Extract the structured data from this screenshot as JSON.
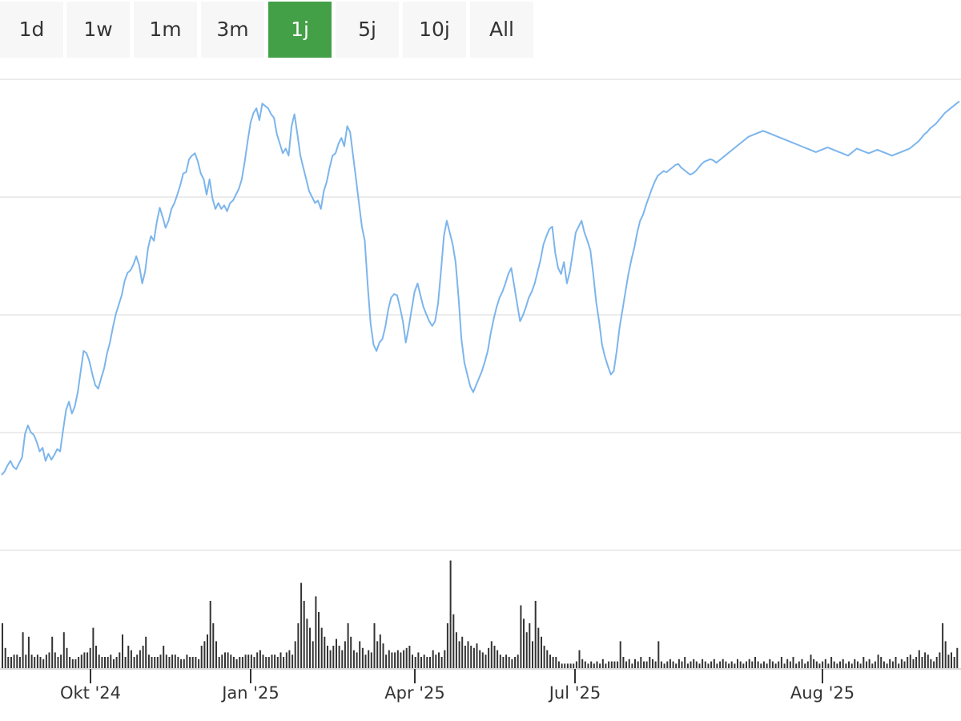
{
  "range_tabs": [
    {
      "label": "1d",
      "active": false
    },
    {
      "label": "1w",
      "active": false
    },
    {
      "label": "1m",
      "active": false
    },
    {
      "label": "3m",
      "active": false
    },
    {
      "label": "1j",
      "active": true
    },
    {
      "label": "5j",
      "active": false
    },
    {
      "label": "10j",
      "active": false
    },
    {
      "label": "All",
      "active": false
    }
  ],
  "colors": {
    "active_tab": "#43a047",
    "tab_background": "#f7f7f7",
    "price_line": "#7cb5ec",
    "volume_bars": "#333333",
    "grid": "#e6e6e6"
  },
  "chart_data": {
    "type": "line",
    "title": "",
    "xlabel": "",
    "ylabel": "",
    "x_tick_labels": [
      "Okt '24",
      "Jan '25",
      "Apr '25",
      "Jul '25",
      "Aug '25"
    ],
    "grid": true,
    "legend": "none",
    "y_tick_labels_visible": false,
    "x_start": "2024-08-28",
    "x_end": "2025-08-27",
    "series": [
      {
        "values": [
          0.0,
          0.03,
          0.08,
          0.12,
          0.07,
          0.05,
          0.1,
          0.15,
          0.35,
          0.42,
          0.36,
          0.34,
          0.28,
          0.2,
          0.23,
          0.12,
          0.18,
          0.13,
          0.17,
          0.22,
          0.2,
          0.38,
          0.55,
          0.62,
          0.52,
          0.58,
          0.7,
          0.88,
          1.05,
          1.03,
          0.96,
          0.85,
          0.76,
          0.73,
          0.82,
          0.9,
          1.03,
          1.12,
          1.25,
          1.36,
          1.44,
          1.52,
          1.64,
          1.71,
          1.73,
          1.78,
          1.85,
          1.77,
          1.62,
          1.72,
          1.92,
          2.02,
          1.98,
          2.14,
          2.26,
          2.18,
          2.09,
          2.15,
          2.25,
          2.3,
          2.37,
          2.45,
          2.55,
          2.56,
          2.67,
          2.7,
          2.72,
          2.65,
          2.55,
          2.5,
          2.37,
          2.5,
          2.34,
          2.25,
          2.3,
          2.25,
          2.28,
          2.23,
          2.3,
          2.32,
          2.37,
          2.42,
          2.5,
          2.65,
          2.82,
          2.98,
          3.06,
          3.1,
          3.0,
          3.14,
          3.12,
          3.1,
          3.05,
          3.02,
          2.88,
          2.8,
          2.72,
          2.76,
          2.7,
          2.95,
          3.05,
          2.88,
          2.7,
          2.6,
          2.5,
          2.4,
          2.35,
          2.3,
          2.32,
          2.25,
          2.4,
          2.48,
          2.6,
          2.7,
          2.72,
          2.8,
          2.85,
          2.78,
          2.95,
          2.9,
          2.7,
          2.5,
          2.3,
          2.1,
          1.98,
          1.6,
          1.28,
          1.1,
          1.05,
          1.12,
          1.15,
          1.25,
          1.4,
          1.5,
          1.53,
          1.52,
          1.42,
          1.3,
          1.12,
          1.25,
          1.4,
          1.55,
          1.62,
          1.52,
          1.42,
          1.36,
          1.3,
          1.26,
          1.3,
          1.45,
          1.72,
          2.02,
          2.15,
          2.05,
          1.95,
          1.8,
          1.5,
          1.15,
          0.95,
          0.85,
          0.75,
          0.7,
          0.76,
          0.82,
          0.88,
          0.96,
          1.05,
          1.2,
          1.32,
          1.42,
          1.5,
          1.55,
          1.62,
          1.7,
          1.75,
          1.6,
          1.45,
          1.3,
          1.35,
          1.42,
          1.5,
          1.55,
          1.62,
          1.72,
          1.82,
          1.95,
          2.02,
          2.08,
          2.1,
          1.88,
          1.75,
          1.7,
          1.8,
          1.62,
          1.72,
          1.88,
          2.05,
          2.1,
          2.15,
          2.05,
          1.98,
          1.9,
          1.7,
          1.46,
          1.3,
          1.1,
          1.0,
          0.92,
          0.85,
          0.88,
          1.05,
          1.25,
          1.4,
          1.55,
          1.7,
          1.82,
          1.92,
          2.05,
          2.15,
          2.2,
          2.28,
          2.35,
          2.42,
          2.48,
          2.53,
          2.55,
          2.57,
          2.56,
          2.58,
          2.6,
          2.62,
          2.63,
          2.6,
          2.58,
          2.56,
          2.54,
          2.55,
          2.57,
          2.6,
          2.63,
          2.65,
          2.66,
          2.67,
          2.66,
          2.64,
          2.66,
          2.68,
          2.7,
          2.72,
          2.74,
          2.76,
          2.78,
          2.8,
          2.82,
          2.84,
          2.86,
          2.87,
          2.88,
          2.89,
          2.9,
          2.91,
          2.9,
          2.89,
          2.88,
          2.87,
          2.86,
          2.85,
          2.84,
          2.83,
          2.82,
          2.81,
          2.8,
          2.79,
          2.78,
          2.77,
          2.76,
          2.75,
          2.74,
          2.73,
          2.74,
          2.75,
          2.76,
          2.77,
          2.76,
          2.75,
          2.74,
          2.73,
          2.72,
          2.71,
          2.7,
          2.72,
          2.74,
          2.76,
          2.75,
          2.74,
          2.73,
          2.72,
          2.73,
          2.74,
          2.75,
          2.74,
          2.73,
          2.72,
          2.71,
          2.7,
          2.71,
          2.72,
          2.73,
          2.74,
          2.75,
          2.76,
          2.78,
          2.8,
          2.82,
          2.85,
          2.88,
          2.9,
          2.93,
          2.95,
          2.97,
          3.0,
          3.03,
          3.06,
          3.08,
          3.1,
          3.12,
          3.14,
          3.16
        ]
      }
    ],
    "volume": {
      "values": [
        0.2,
        0.09,
        0.05,
        0.05,
        0.06,
        0.06,
        0.05,
        0.16,
        0.06,
        0.14,
        0.06,
        0.05,
        0.06,
        0.05,
        0.04,
        0.06,
        0.07,
        0.14,
        0.07,
        0.05,
        0.06,
        0.16,
        0.09,
        0.05,
        0.04,
        0.04,
        0.05,
        0.06,
        0.07,
        0.07,
        0.09,
        0.18,
        0.1,
        0.06,
        0.05,
        0.05,
        0.05,
        0.06,
        0.04,
        0.05,
        0.07,
        0.15,
        0.05,
        0.1,
        0.08,
        0.05,
        0.06,
        0.08,
        0.1,
        0.14,
        0.06,
        0.05,
        0.05,
        0.05,
        0.06,
        0.1,
        0.06,
        0.05,
        0.06,
        0.06,
        0.05,
        0.04,
        0.04,
        0.06,
        0.05,
        0.05,
        0.05,
        0.04,
        0.1,
        0.12,
        0.15,
        0.3,
        0.2,
        0.12,
        0.05,
        0.06,
        0.07,
        0.07,
        0.06,
        0.05,
        0.04,
        0.05,
        0.05,
        0.06,
        0.06,
        0.06,
        0.05,
        0.07,
        0.08,
        0.06,
        0.05,
        0.05,
        0.06,
        0.06,
        0.05,
        0.07,
        0.05,
        0.07,
        0.08,
        0.06,
        0.12,
        0.2,
        0.38,
        0.3,
        0.22,
        0.18,
        0.12,
        0.32,
        0.25,
        0.18,
        0.14,
        0.1,
        0.08,
        0.1,
        0.13,
        0.1,
        0.08,
        0.12,
        0.2,
        0.14,
        0.08,
        0.07,
        0.12,
        0.09,
        0.06,
        0.08,
        0.07,
        0.2,
        0.12,
        0.15,
        0.11,
        0.06,
        0.08,
        0.07,
        0.07,
        0.08,
        0.07,
        0.08,
        0.09,
        0.1,
        0.06,
        0.05,
        0.07,
        0.05,
        0.06,
        0.05,
        0.05,
        0.08,
        0.06,
        0.07,
        0.05,
        0.08,
        0.2,
        0.48,
        0.24,
        0.16,
        0.12,
        0.14,
        0.1,
        0.12,
        0.1,
        0.09,
        0.11,
        0.08,
        0.07,
        0.06,
        0.09,
        0.12,
        0.1,
        0.08,
        0.06,
        0.05,
        0.06,
        0.05,
        0.04,
        0.05,
        0.06,
        0.28,
        0.22,
        0.16,
        0.2,
        0.12,
        0.3,
        0.18,
        0.14,
        0.1,
        0.08,
        0.06,
        0.05,
        0.05,
        0.03,
        0.02,
        0.02,
        0.02,
        0.02,
        0.02,
        0.03,
        0.08,
        0.04,
        0.03,
        0.02,
        0.03,
        0.02,
        0.03,
        0.02,
        0.04,
        0.02,
        0.03,
        0.03,
        0.03,
        0.03,
        0.12,
        0.05,
        0.03,
        0.04,
        0.02,
        0.04,
        0.03,
        0.05,
        0.03,
        0.03,
        0.05,
        0.04,
        0.03,
        0.12,
        0.03,
        0.02,
        0.03,
        0.04,
        0.03,
        0.02,
        0.04,
        0.03,
        0.05,
        0.02,
        0.03,
        0.04,
        0.03,
        0.02,
        0.04,
        0.03,
        0.02,
        0.03,
        0.04,
        0.02,
        0.03,
        0.04,
        0.03,
        0.02,
        0.03,
        0.02,
        0.04,
        0.03,
        0.02,
        0.03,
        0.04,
        0.03,
        0.05,
        0.03,
        0.02,
        0.03,
        0.02,
        0.04,
        0.03,
        0.02,
        0.03,
        0.05,
        0.02,
        0.04,
        0.03,
        0.05,
        0.02,
        0.03,
        0.04,
        0.02,
        0.03,
        0.06,
        0.04,
        0.03,
        0.02,
        0.03,
        0.04,
        0.02,
        0.05,
        0.03,
        0.02,
        0.03,
        0.04,
        0.02,
        0.03,
        0.02,
        0.04,
        0.03,
        0.02,
        0.05,
        0.03,
        0.04,
        0.02,
        0.03,
        0.06,
        0.05,
        0.03,
        0.02,
        0.04,
        0.03,
        0.05,
        0.02,
        0.04,
        0.03,
        0.05,
        0.06,
        0.04,
        0.05,
        0.08,
        0.05,
        0.07,
        0.06,
        0.04,
        0.03,
        0.05,
        0.07,
        0.2,
        0.12,
        0.06,
        0.07,
        0.05,
        0.09
      ]
    }
  }
}
